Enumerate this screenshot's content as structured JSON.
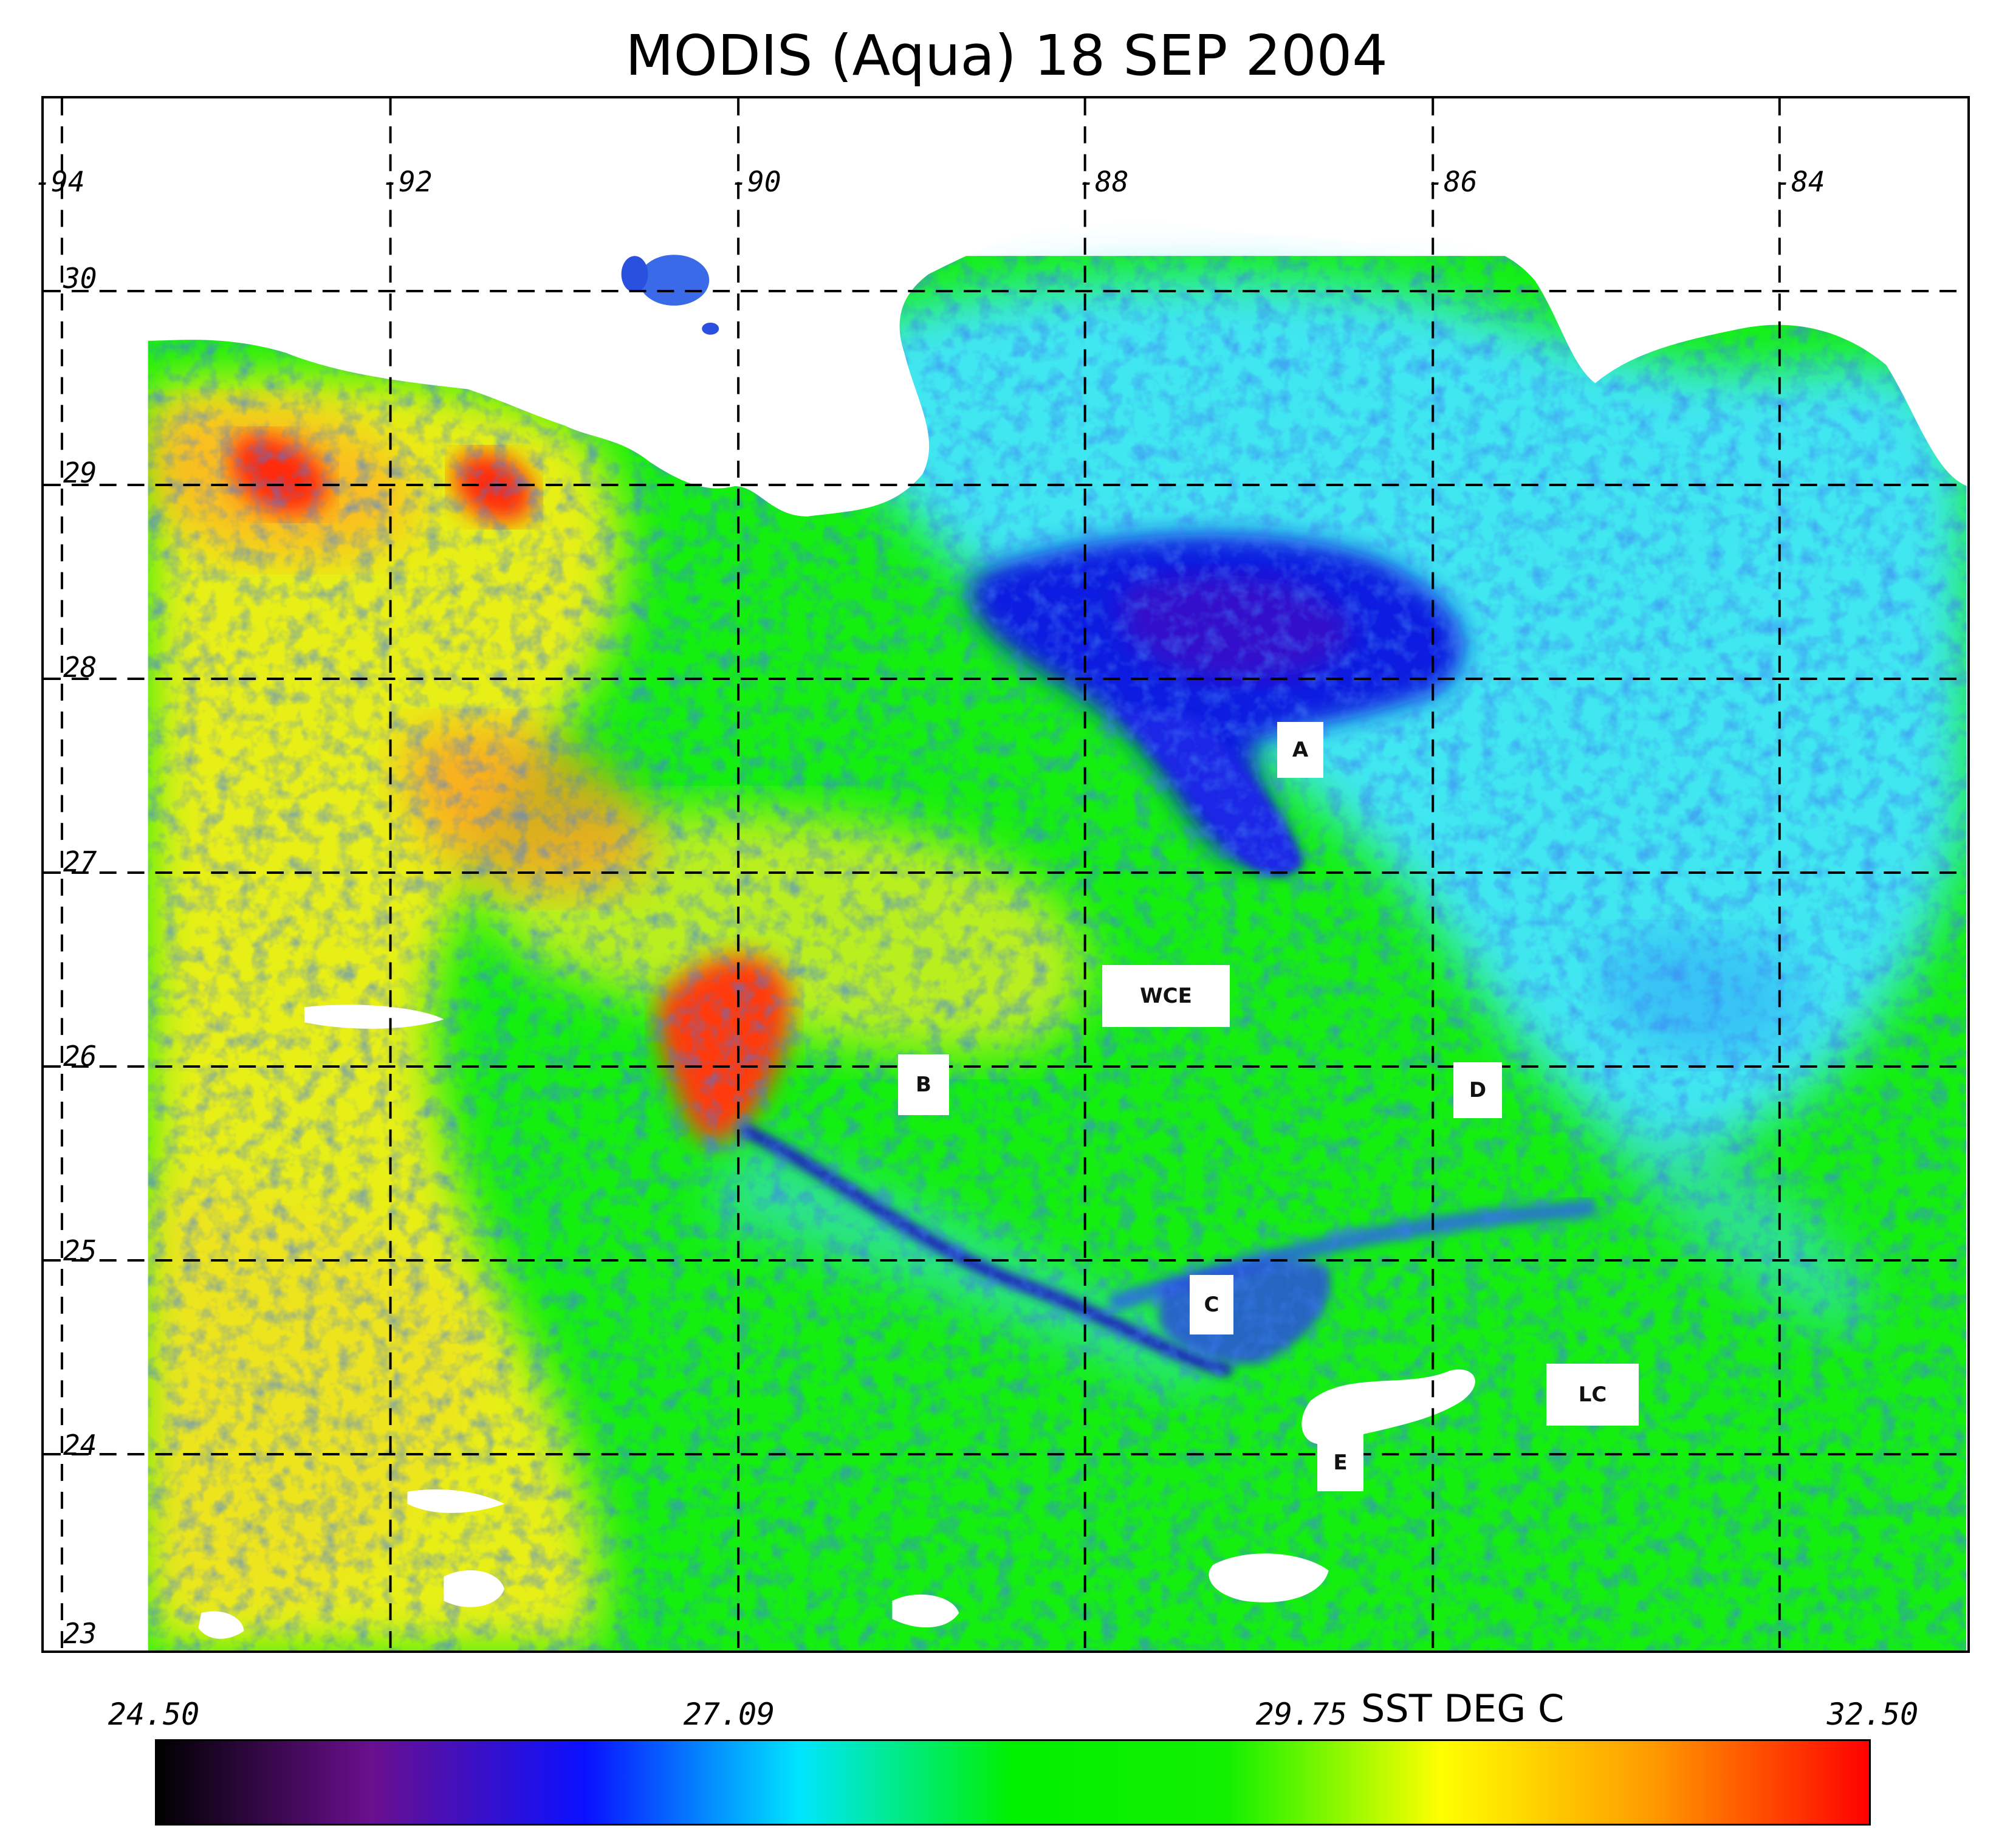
{
  "title": "MODIS (Aqua) 18 SEP 2004",
  "longitude_labels": [
    "-94",
    "-92",
    "-90",
    "-88",
    "-86",
    "-84"
  ],
  "latitude_labels": [
    "30",
    "29",
    "28",
    "27",
    "26",
    "25",
    "24",
    "23"
  ],
  "feature_labels": [
    {
      "id": "A",
      "text": "A"
    },
    {
      "id": "WCE",
      "text": "WCE"
    },
    {
      "id": "B",
      "text": "B"
    },
    {
      "id": "D",
      "text": "D"
    },
    {
      "id": "C",
      "text": "C"
    },
    {
      "id": "LC",
      "text": "LC"
    },
    {
      "id": "E",
      "text": "E"
    }
  ],
  "colorbar": {
    "ticks": [
      "24.50",
      "27.09",
      "29.75",
      "32.50"
    ],
    "units": "SST DEG C",
    "range": [
      24.5,
      32.5
    ],
    "colors": [
      "#000000",
      "#6a0f8e",
      "#0a10ff",
      "#00e5ff",
      "#00f000",
      "#12f000",
      "#ffff00",
      "#ff9900",
      "#ff0000"
    ]
  },
  "palette": {
    "land": "#ffffff",
    "cool_shelf": "#1a2be0",
    "warm": "#ff3a10",
    "ocean": "#14ef10",
    "cyan": "#40e6f0"
  }
}
